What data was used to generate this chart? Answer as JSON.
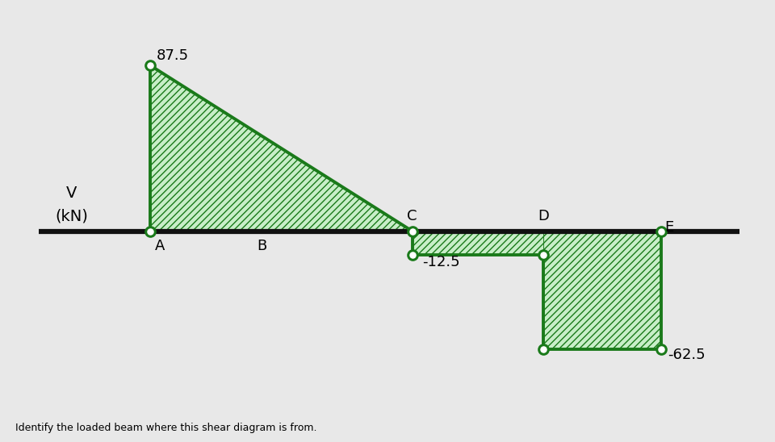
{
  "background_color": "#e8e8e8",
  "baseline_color": "#111111",
  "line_color": "#1a7a1a",
  "fill_facecolor": "#c8eec8",
  "fill_edgecolor": "#1a7a1a",
  "circle_edge": "#1a7a1a",
  "val_87": 87.5,
  "val_neg12": -12.5,
  "val_neg62": -62.5,
  "label_87": "87.5",
  "label_neg12": "-12.5",
  "label_neg62": "-62.5",
  "footer_text": "Identify the loaded beam where this shear diagram is from.",
  "footer_fontsize": 9,
  "ylabel_line1": "V",
  "ylabel_line2": "(kN)"
}
